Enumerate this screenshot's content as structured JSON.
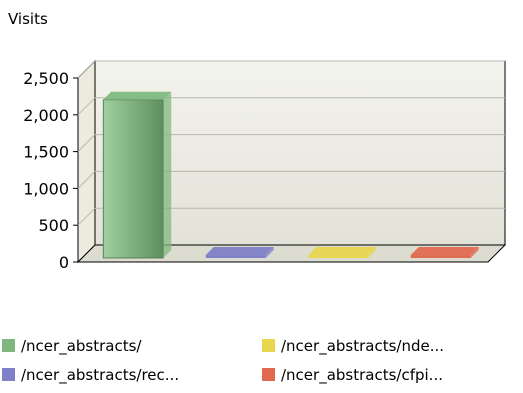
{
  "chart_data": {
    "type": "bar",
    "ylabel": "Visits",
    "ylim": [
      0,
      2500
    ],
    "yticks": [
      "0",
      "500",
      "1,000",
      "1,500",
      "2,000",
      "2,500"
    ],
    "tick_values": [
      0,
      500,
      1000,
      1500,
      2000,
      2500
    ],
    "grid": true,
    "three_d": true,
    "legend_position": "bottom",
    "series": [
      {
        "name": "/ncer_abstracts/",
        "value": 2150,
        "color": "#7fb87f"
      },
      {
        "name": "/ncer_abstracts/rec...",
        "value": 40,
        "color": "#8080c8"
      },
      {
        "name": "/ncer_abstracts/nde...",
        "value": 40,
        "color": "#e8d650"
      },
      {
        "name": "/ncer_abstracts/cfpi...",
        "value": 40,
        "color": "#e06a50"
      }
    ]
  }
}
